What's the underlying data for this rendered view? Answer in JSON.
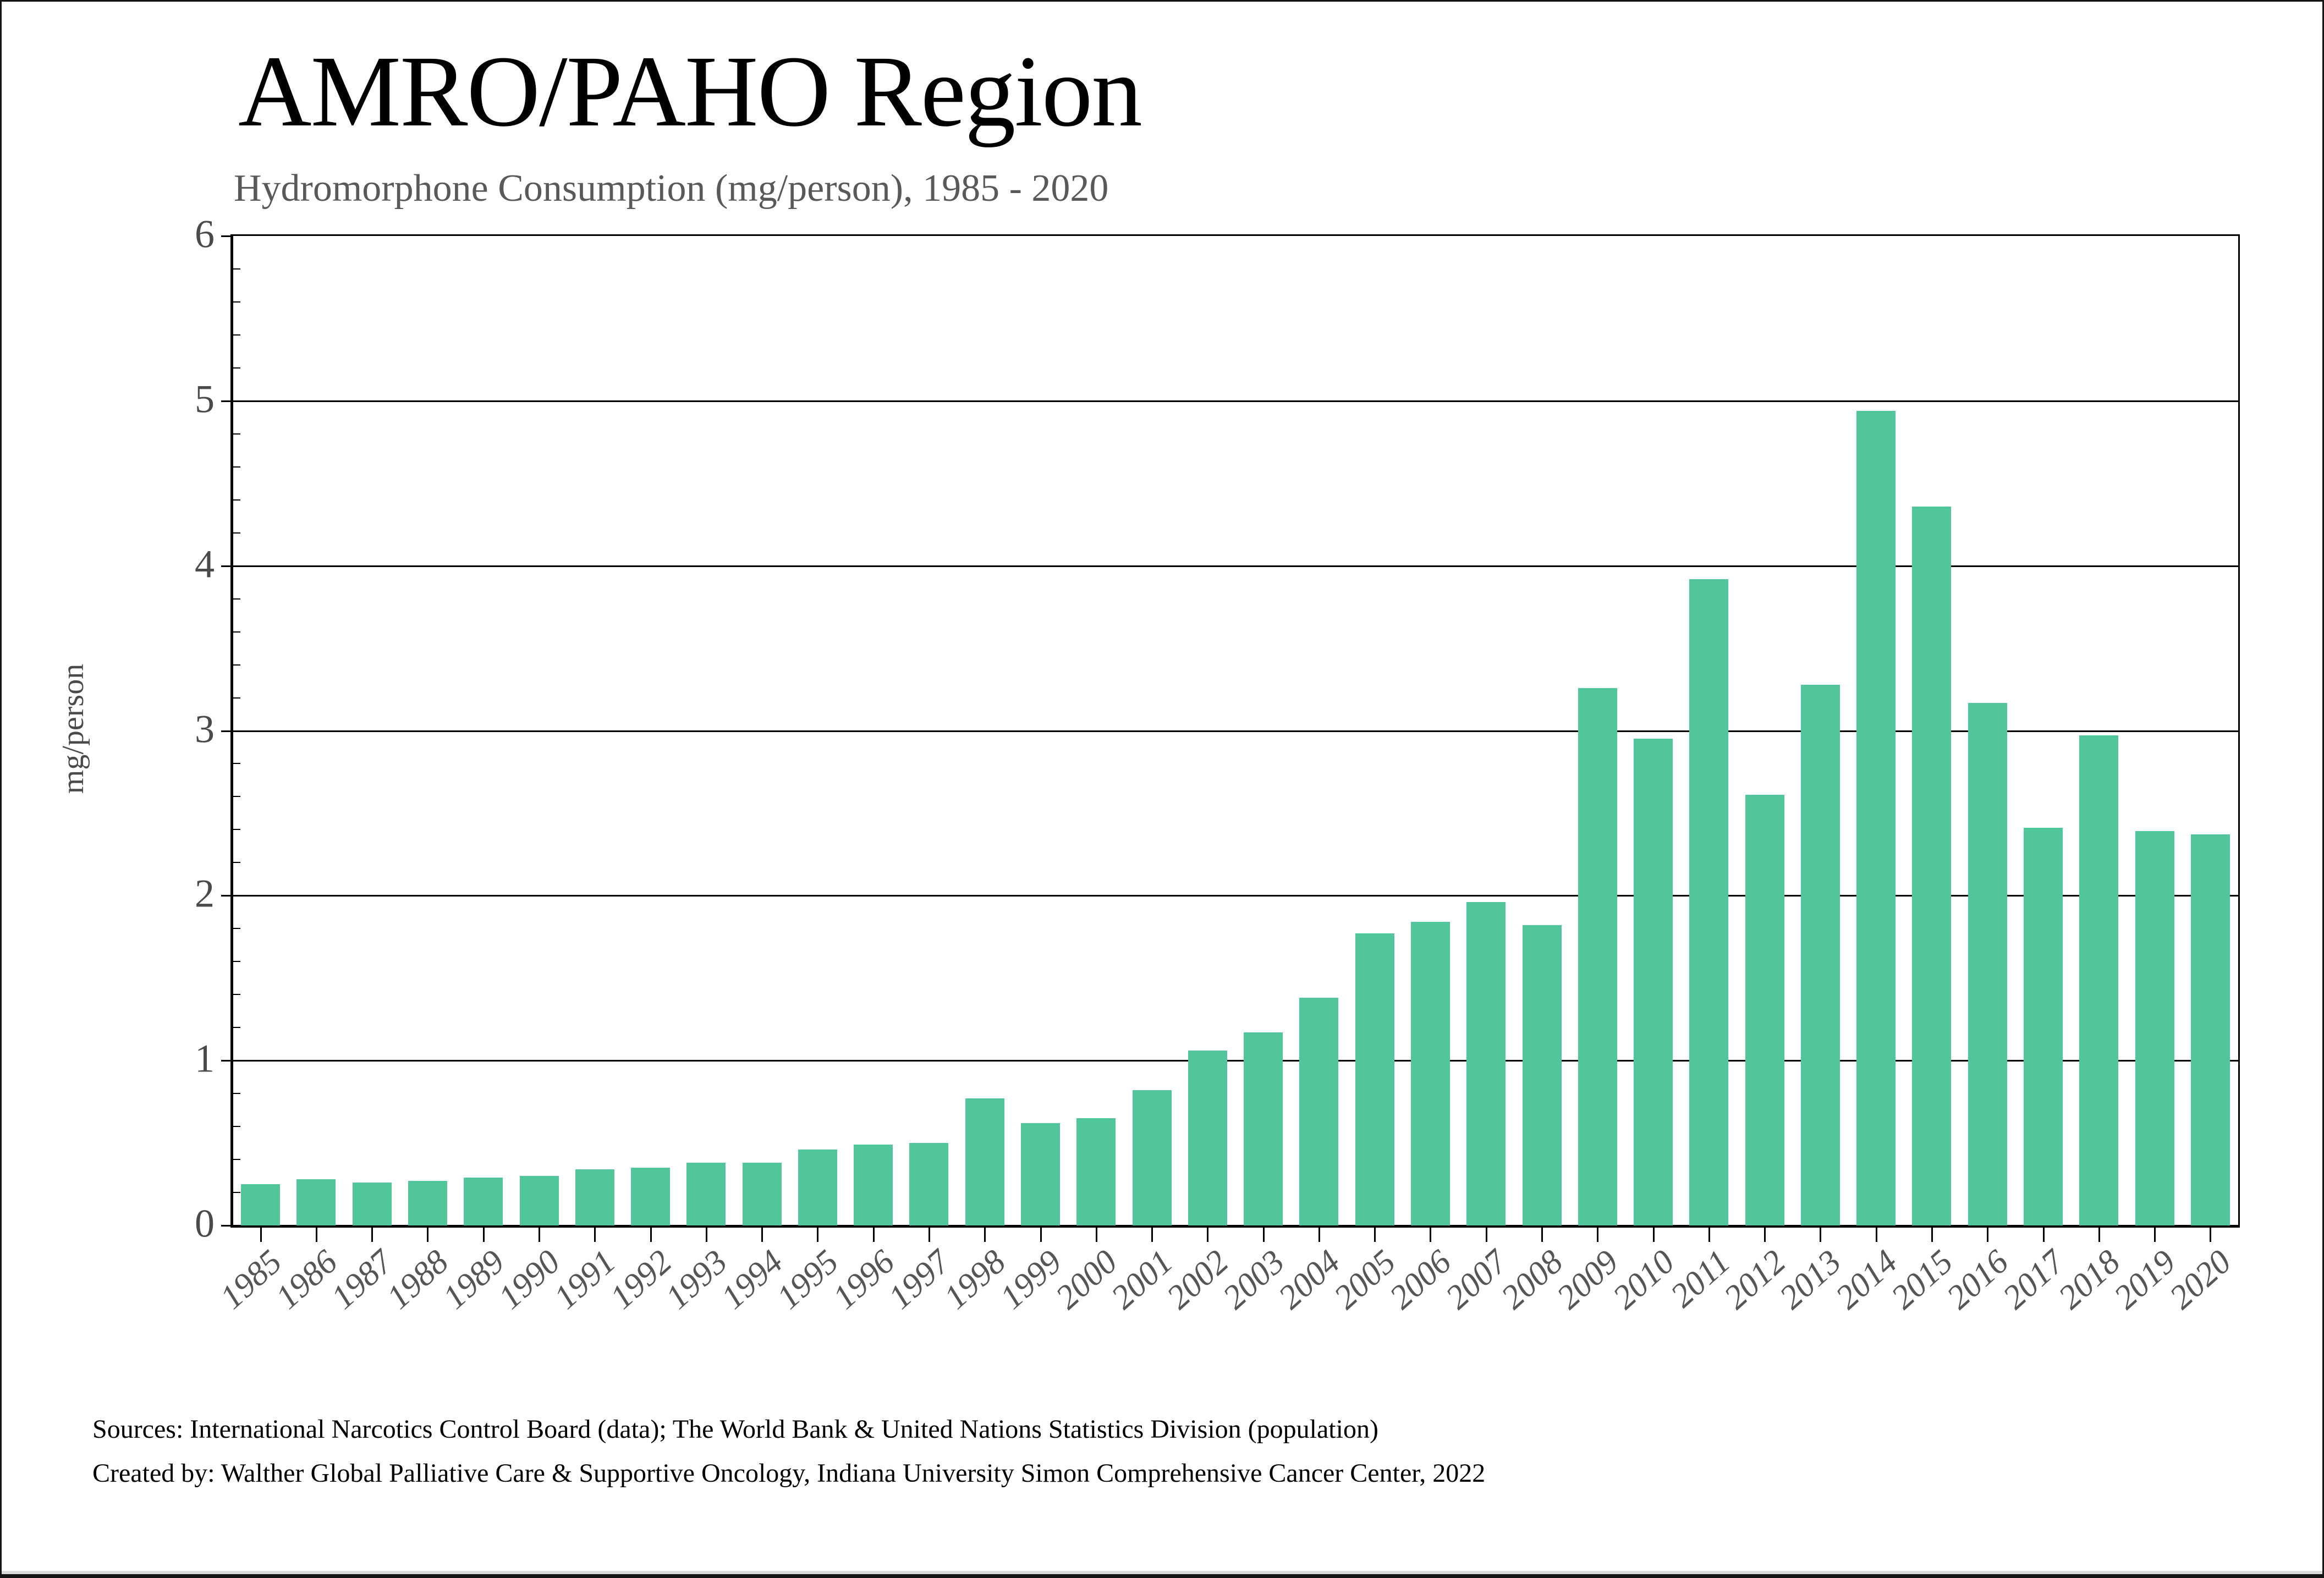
{
  "title": "AMRO/PAHO Region",
  "subtitle": "Hydromorphone Consumption (mg/person), 1985 - 2020",
  "y_axis_label": "mg/person",
  "footer": {
    "sources": "Sources: International Narcotics Control Board (data); The World Bank & United Nations Statistics Division (population)",
    "created_by": "Created by: Walther Global Palliative Care & Supportive Oncology, Indiana University Simon Comprehensive Cancer Center, 2022"
  },
  "chart_data": {
    "type": "bar",
    "title": "AMRO/PAHO Region",
    "subtitle": "Hydromorphone Consumption (mg/person), 1985 - 2020",
    "xlabel": "",
    "ylabel": "mg/person",
    "categories": [
      "1985",
      "1986",
      "1987",
      "1988",
      "1989",
      "1990",
      "1991",
      "1992",
      "1993",
      "1994",
      "1995",
      "1996",
      "1997",
      "1998",
      "1999",
      "2000",
      "2001",
      "2002",
      "2003",
      "2004",
      "2005",
      "2006",
      "2007",
      "2008",
      "2009",
      "2010",
      "2011",
      "2012",
      "2013",
      "2014",
      "2015",
      "2016",
      "2017",
      "2018",
      "2019",
      "2020"
    ],
    "values": [
      0.25,
      0.28,
      0.26,
      0.27,
      0.29,
      0.3,
      0.34,
      0.35,
      0.38,
      0.38,
      0.46,
      0.49,
      0.5,
      0.77,
      0.62,
      0.65,
      0.82,
      1.06,
      1.17,
      1.38,
      1.77,
      1.84,
      1.96,
      1.82,
      3.26,
      2.95,
      3.92,
      2.61,
      3.28,
      4.94,
      4.36,
      3.17,
      2.41,
      2.97,
      2.39,
      2.37
    ],
    "ylim": [
      0,
      6
    ],
    "ytick_interval": 1,
    "ytick_minor_interval": 0.2,
    "grid": "horizontal",
    "legend": "none",
    "bar_color": "#52C69B",
    "axis_color": "#000000",
    "tick_label_color": "#4a4a4a",
    "x_label_rotation_deg": 42
  }
}
